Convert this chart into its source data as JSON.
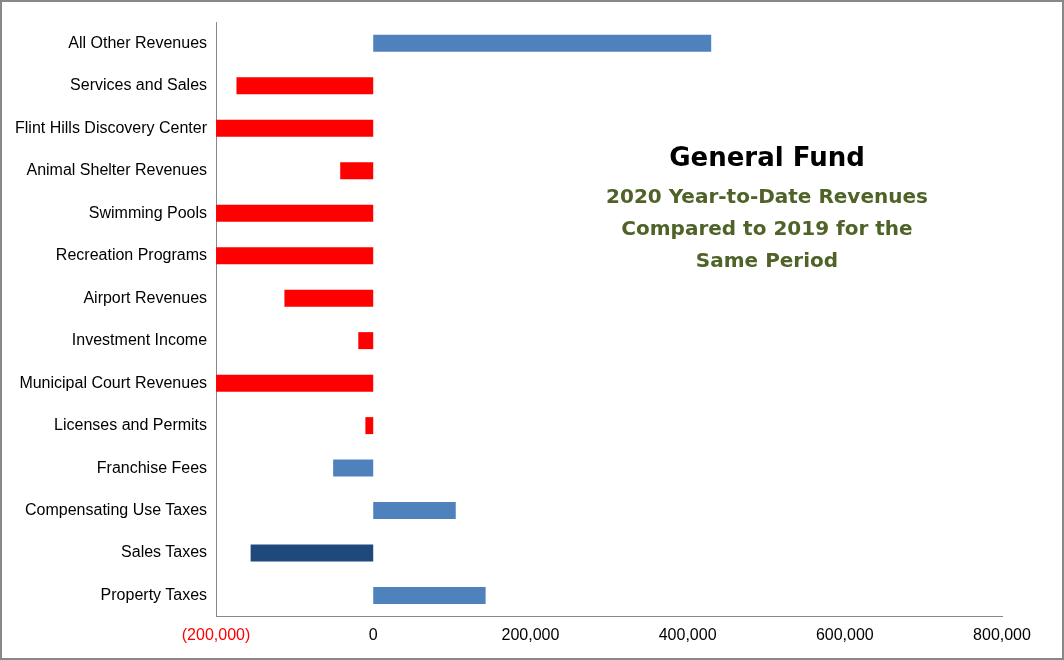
{
  "chart_data": {
    "type": "bar",
    "orientation": "horizontal",
    "title": "General Fund",
    "subtitle": "2020 Year-to-Date Revenues Compared  to 2019 for the Same Period",
    "categories": [
      "All Other Revenues",
      "Services and Sales",
      "Flint Hills Discovery Center",
      "Animal Shelter Revenues",
      "Swimming Pools",
      "Recreation Programs",
      "Airport Revenues",
      "Investment Income",
      "Municipal Court Revenues",
      "Licenses and Permits",
      "Franchise Fees",
      "Compensating Use Taxes",
      "Sales Taxes",
      "Property Taxes"
    ],
    "values": [
      430000,
      -174000,
      -200000,
      -42000,
      -200000,
      -200000,
      -113000,
      -19000,
      -200000,
      -10000,
      -51000,
      105000,
      -156000,
      143000
    ],
    "colors": [
      "#4f81bd",
      "#ff0000",
      "#ff0000",
      "#ff0000",
      "#ff0000",
      "#ff0000",
      "#ff0000",
      "#ff0000",
      "#ff0000",
      "#ff0000",
      "#4f81bd",
      "#4f81bd",
      "#1f497d",
      "#4f81bd"
    ],
    "xlim": [
      -200000,
      800000
    ],
    "xticks": [
      {
        "value": -200000,
        "label": "(200,000)"
      },
      0,
      {
        "value": 200000,
        "label": "200,000"
      },
      {
        "value": 400000,
        "label": "400,000"
      },
      {
        "value": 600000,
        "label": "600,000"
      },
      {
        "value": 800000,
        "label": "800,000"
      }
    ],
    "grid": false,
    "legend": false
  }
}
